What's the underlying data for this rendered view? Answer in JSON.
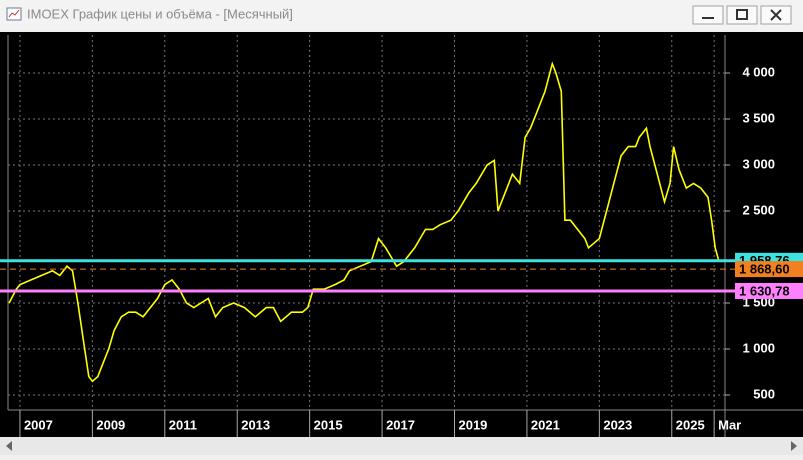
{
  "window": {
    "title": "IMOEX График цены и объёма - [Месячный]"
  },
  "chart_data": {
    "type": "line",
    "x": [
      2006.7,
      2006.9,
      2007.0,
      2007.3,
      2007.6,
      2007.9,
      2008.1,
      2008.3,
      2008.45,
      2008.6,
      2008.75,
      2008.9,
      2009.0,
      2009.15,
      2009.3,
      2009.45,
      2009.6,
      2009.8,
      2010.0,
      2010.2,
      2010.4,
      2010.6,
      2010.8,
      2011.0,
      2011.2,
      2011.4,
      2011.6,
      2011.8,
      2012.0,
      2012.2,
      2012.4,
      2012.6,
      2012.9,
      2013.2,
      2013.5,
      2013.8,
      2014.0,
      2014.2,
      2014.5,
      2014.8,
      2014.95,
      2015.1,
      2015.4,
      2015.7,
      2015.95,
      2016.1,
      2016.4,
      2016.7,
      2016.9,
      2017.1,
      2017.4,
      2017.6,
      2017.9,
      2018.2,
      2018.4,
      2018.6,
      2018.9,
      2019.1,
      2019.4,
      2019.6,
      2019.9,
      2020.1,
      2020.2,
      2020.4,
      2020.6,
      2020.8,
      2020.95,
      2021.1,
      2021.3,
      2021.5,
      2021.7,
      2021.8,
      2021.95,
      2022.05,
      2022.2,
      2022.4,
      2022.6,
      2022.7,
      2022.85,
      2023.0,
      2023.2,
      2023.4,
      2023.6,
      2023.8,
      2024.0,
      2024.1,
      2024.3,
      2024.4,
      2024.6,
      2024.8,
      2024.95,
      2025.05,
      2025.2,
      2025.4,
      2025.6,
      2025.8,
      2026.0,
      2026.1,
      2026.2,
      2026.3
    ],
    "series": [
      {
        "color": "#ffff00",
        "values": [
          1500,
          1650,
          1700,
          1750,
          1800,
          1850,
          1800,
          1900,
          1850,
          1500,
          1100,
          700,
          650,
          700,
          850,
          1000,
          1200,
          1350,
          1400,
          1400,
          1350,
          1450,
          1550,
          1700,
          1750,
          1650,
          1500,
          1450,
          1500,
          1550,
          1350,
          1450,
          1500,
          1450,
          1350,
          1450,
          1450,
          1300,
          1400,
          1400,
          1450,
          1650,
          1650,
          1700,
          1750,
          1850,
          1900,
          1950,
          2200,
          2100,
          1900,
          1950,
          2100,
          2300,
          2300,
          2350,
          2400,
          2500,
          2700,
          2800,
          3000,
          3050,
          2500,
          2700,
          2900,
          2800,
          3300,
          3400,
          3600,
          3800,
          4100,
          4000,
          3800,
          2400,
          2400,
          2300,
          2200,
          2100,
          2150,
          2200,
          2500,
          2800,
          3100,
          3200,
          3200,
          3300,
          3400,
          3200,
          2900,
          2600,
          2800,
          3200,
          2950,
          2750,
          2800,
          2750,
          2650,
          2400,
          2100,
          1959
        ]
      }
    ],
    "xlim": [
      2006.67,
      2026.47
    ],
    "xticks": [
      2007,
      2009,
      2011,
      2013,
      2015,
      2017,
      2019,
      2021,
      2023,
      2025,
      {
        "value": 2026.17,
        "label": "Mar"
      }
    ],
    "ylim": [
      337,
      4413
    ],
    "yticks": [
      {
        "value": 500,
        "label": "500"
      },
      {
        "value": 1000,
        "label": "1 000"
      },
      {
        "value": 1500,
        "label": "1 500"
      },
      {
        "value": 2500,
        "label": "2 500"
      },
      {
        "value": 3000,
        "label": "3 000"
      },
      {
        "value": 3500,
        "label": "3 500"
      },
      {
        "value": 4000,
        "label": "4 000"
      }
    ],
    "grid": true,
    "levels": [
      {
        "value": 1958.76,
        "label": "1 958,76",
        "color": "#40e0e0"
      },
      {
        "value": 1868.6,
        "label": "1 868,60",
        "color": "#f08020",
        "dashed": true
      },
      {
        "value": 1630.78,
        "label": "1 630,78",
        "color": "#ff80ff"
      }
    ]
  }
}
